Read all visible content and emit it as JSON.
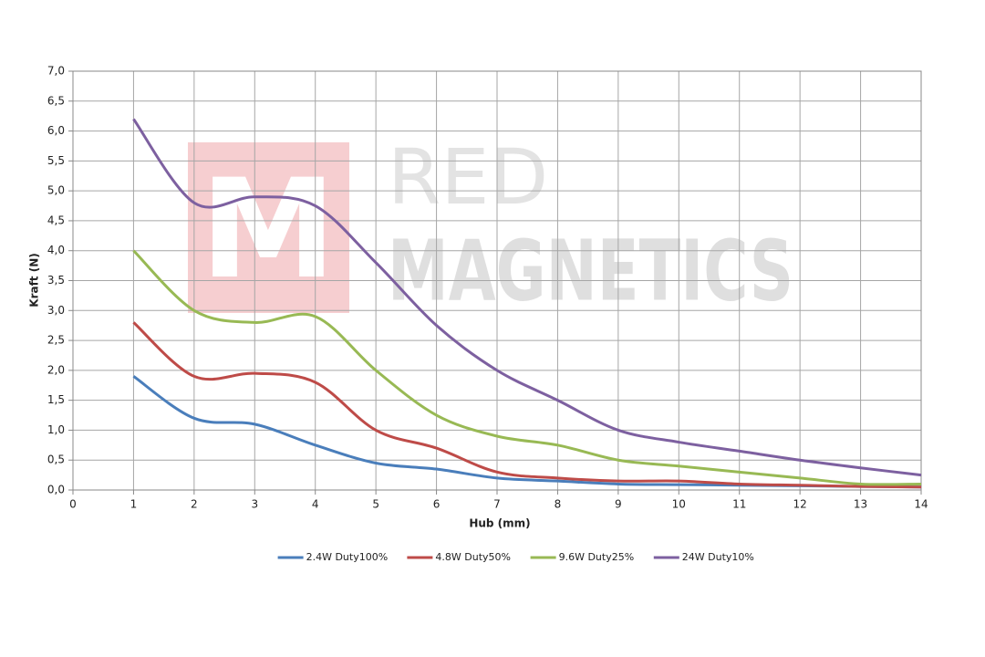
{
  "chart_data": {
    "type": "line",
    "watermark": {
      "logo": "M",
      "lines": [
        "RED",
        "MAGNETICS"
      ]
    },
    "x_label": "Hub (mm)",
    "y_label": "Kraft (N)",
    "x": [
      1,
      2,
      3,
      4,
      5,
      6,
      7,
      8,
      9,
      10,
      11,
      12,
      13,
      14
    ],
    "series": [
      {
        "name": "2.4W Duty100%",
        "color": "#4a7ebb",
        "values": [
          1.9,
          1.2,
          1.1,
          0.75,
          0.45,
          0.35,
          0.2,
          0.15,
          0.1,
          0.09,
          0.08,
          0.07,
          0.06,
          0.05
        ]
      },
      {
        "name": "4.8W Duty50%",
        "color": "#be4b48",
        "values": [
          2.8,
          1.9,
          1.95,
          1.8,
          1.0,
          0.7,
          0.3,
          0.2,
          0.15,
          0.15,
          0.1,
          0.08,
          0.06,
          0.05
        ]
      },
      {
        "name": "9.6W Duty25%",
        "color": "#98b954",
        "values": [
          4.0,
          3.0,
          2.8,
          2.9,
          2.0,
          1.25,
          0.9,
          0.75,
          0.5,
          0.4,
          0.3,
          0.2,
          0.1,
          0.1
        ]
      },
      {
        "name": "24W Duty10%",
        "color": "#7d60a0",
        "values": [
          6.2,
          4.8,
          4.9,
          4.75,
          3.8,
          2.75,
          2.0,
          1.5,
          1.0,
          0.8,
          0.65,
          0.5,
          0.37,
          0.25
        ]
      }
    ],
    "xlim": [
      0,
      14
    ],
    "xticks": [
      0,
      1,
      2,
      3,
      4,
      5,
      6,
      7,
      8,
      9,
      10,
      11,
      12,
      13,
      14
    ],
    "ylim": [
      0,
      7
    ],
    "yticks": [
      {
        "value": 0,
        "label": "0,0"
      },
      {
        "value": 0.5,
        "label": "0,5"
      },
      {
        "value": 1,
        "label": "1,0"
      },
      {
        "value": 1.5,
        "label": "1,5"
      },
      {
        "value": 2,
        "label": "2,0"
      },
      {
        "value": 2.5,
        "label": "2,5"
      },
      {
        "value": 3,
        "label": "3,0"
      },
      {
        "value": 3.5,
        "label": "3,5"
      },
      {
        "value": 4,
        "label": "4,0"
      },
      {
        "value": 4.5,
        "label": "4,5"
      },
      {
        "value": 5,
        "label": "5,0"
      },
      {
        "value": 5.5,
        "label": "5,5"
      },
      {
        "value": 6,
        "label": "6,0"
      },
      {
        "value": 6.5,
        "label": "6,5"
      },
      {
        "value": 7,
        "label": "7,0"
      }
    ],
    "grid": true,
    "smooth": true,
    "legend": "bottom"
  }
}
